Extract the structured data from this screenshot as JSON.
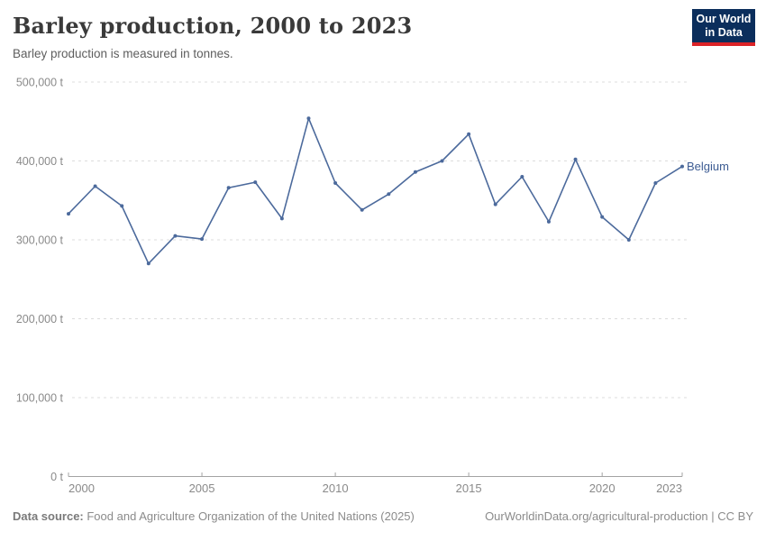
{
  "header": {
    "title": "Barley production, 2000 to 2023",
    "subtitle": "Barley production is measured in tonnes.",
    "logo": {
      "line1": "Our World",
      "line2": "in Data"
    }
  },
  "chart_data": {
    "type": "line",
    "title": "Barley production, 2000 to 2023",
    "ylabel": "",
    "xlabel": "",
    "unit": "t",
    "xlim": [
      2000,
      2023
    ],
    "ylim": [
      0,
      500000
    ],
    "grid": "horizontal-dashed",
    "legend_position": "end-of-line",
    "x": [
      2000,
      2001,
      2002,
      2003,
      2004,
      2005,
      2006,
      2007,
      2008,
      2009,
      2010,
      2011,
      2012,
      2013,
      2014,
      2015,
      2016,
      2017,
      2018,
      2019,
      2020,
      2021,
      2022,
      2023
    ],
    "series": [
      {
        "name": "Belgium",
        "color": "#4c6a9c",
        "values": [
          333000,
          368000,
          343000,
          270000,
          305000,
          301000,
          366000,
          373000,
          327000,
          454000,
          372000,
          338000,
          358000,
          386000,
          400000,
          434000,
          345000,
          380000,
          323000,
          402000,
          329000,
          300000,
          372000,
          393000
        ]
      }
    ],
    "x_ticks": {
      "values": [
        2000,
        2005,
        2010,
        2015,
        2020,
        2023
      ],
      "labels": [
        "2000",
        "2005",
        "2010",
        "2015",
        "2020",
        "2023"
      ]
    },
    "y_ticks": {
      "values": [
        0,
        100000,
        200000,
        300000,
        400000,
        500000
      ],
      "labels": [
        "0 t",
        "100,000 t",
        "200,000 t",
        "300,000 t",
        "400,000 t",
        "500,000 t"
      ]
    },
    "end_label": "Belgium"
  },
  "footer": {
    "source_label": "Data source:",
    "source_text": " Food and Agriculture Organization of the United Nations (2025)",
    "credit": "OurWorldinData.org/agricultural-production | CC BY"
  },
  "colors": {
    "line": "#4c6a9c",
    "end_label": "#3d5c93",
    "grid": "#dcdcdc",
    "axis": "#a3a3a3",
    "tick_text": "#8a8a8a",
    "logo_bg": "#0b2e5c",
    "logo_accent": "#dc2327"
  }
}
